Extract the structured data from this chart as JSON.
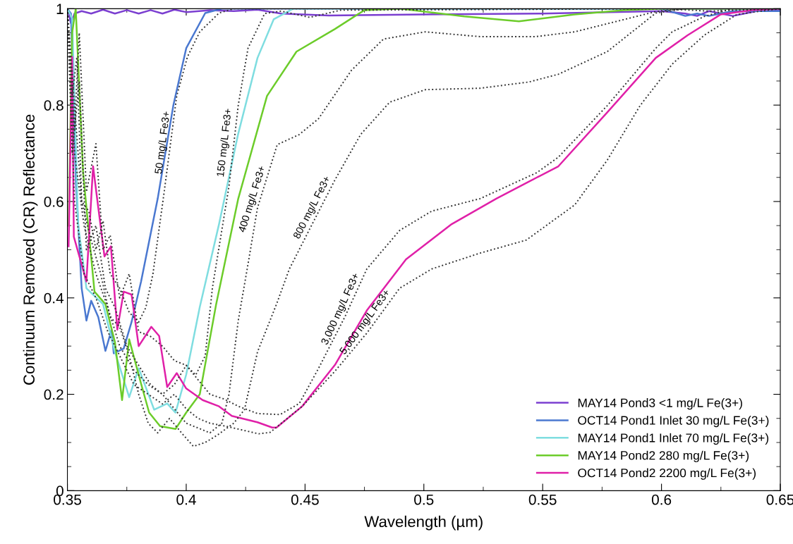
{
  "chart_data": {
    "type": "line",
    "xlabel": "Wavelength (µm)",
    "ylabel": "Continuum Removed (CR) Reflectance",
    "xlim": [
      0.35,
      0.65
    ],
    "ylim": [
      0,
      1
    ],
    "xticks": [
      0.35,
      0.4,
      0.45,
      0.5,
      0.55,
      0.6,
      0.65
    ],
    "yticks": [
      0,
      0.2,
      0.4,
      0.6,
      0.8,
      1
    ],
    "grid": false,
    "legend": "bottom right",
    "marker": "none",
    "series": [
      {
        "name": "MAY14 Pond3 <1 mg/L Fe(3+)",
        "color": "#7b3fd0",
        "line_style": "solid",
        "x": [
          0.35,
          0.3515,
          0.353,
          0.356,
          0.36,
          0.365,
          0.37,
          0.375,
          0.38,
          0.385,
          0.39,
          0.395,
          0.4,
          0.41,
          0.42,
          0.43,
          0.44,
          0.46,
          0.5,
          0.55,
          0.6,
          0.61,
          0.615,
          0.62,
          0.625,
          0.63,
          0.64,
          0.65
        ],
        "values": [
          1.0,
          0.97,
          0.99,
          0.995,
          0.99,
          0.998,
          0.99,
          0.997,
          0.99,
          0.997,
          0.99,
          0.998,
          0.993,
          0.997,
          0.995,
          0.998,
          0.99,
          0.986,
          0.988,
          0.99,
          0.995,
          0.99,
          0.985,
          0.995,
          0.99,
          0.985,
          0.995,
          0.996
        ]
      },
      {
        "name": "OCT14 Pond1 Inlet 30 mg/L Fe(3+)",
        "color": "#4a78d0",
        "line_style": "solid",
        "x": [
          0.35,
          0.3515,
          0.3536,
          0.356,
          0.358,
          0.36,
          0.363,
          0.366,
          0.3686,
          0.3695,
          0.3737,
          0.377,
          0.381,
          0.388,
          0.3946,
          0.4,
          0.408,
          0.415,
          0.6,
          0.61,
          0.615,
          0.62,
          0.63,
          0.65
        ],
        "values": [
          1.0,
          0.99,
          0.64,
          0.42,
          0.353,
          0.394,
          0.36,
          0.29,
          0.334,
          0.285,
          0.295,
          0.35,
          0.434,
          0.606,
          0.8,
          0.918,
          0.991,
          1.0,
          1.0,
          0.985,
          0.99,
          0.985,
          0.995,
          0.995
        ]
      },
      {
        "name": "MAY14 Pond1 Inlet 70 mg/L Fe(3+)",
        "color": "#7fdde0",
        "line_style": "solid",
        "x": [
          0.35,
          0.352,
          0.3545,
          0.358,
          0.365,
          0.37,
          0.376,
          0.38,
          0.3865,
          0.392,
          0.3955,
          0.4,
          0.4057,
          0.4138,
          0.4218,
          0.43,
          0.4368,
          0.445,
          0.65
        ],
        "values": [
          1.0,
          0.98,
          0.553,
          0.42,
          0.387,
          0.288,
          0.194,
          0.254,
          0.168,
          0.181,
          0.162,
          0.241,
          0.381,
          0.553,
          0.739,
          0.898,
          0.978,
          1.0,
          1.0
        ]
      },
      {
        "name": "MAY14 Pond2 280 mg/L Fe(3+)",
        "color": "#6ccc2a",
        "line_style": "solid",
        "x": [
          0.3505,
          0.352,
          0.3535,
          0.3566,
          0.3614,
          0.366,
          0.37,
          0.373,
          0.376,
          0.381,
          0.3844,
          0.389,
          0.3955,
          0.4,
          0.4057,
          0.4126,
          0.4219,
          0.434,
          0.4464,
          0.4626,
          0.475,
          0.49,
          0.517,
          0.54,
          0.5635,
          0.584,
          0.6,
          0.65
        ],
        "values": [
          0.55,
          0.95,
          1.0,
          0.66,
          0.413,
          0.387,
          0.308,
          0.188,
          0.314,
          0.222,
          0.162,
          0.134,
          0.128,
          0.162,
          0.2,
          0.387,
          0.606,
          0.819,
          0.911,
          0.958,
          0.997,
          1.0,
          0.984,
          0.974,
          0.988,
          0.997,
          1.0,
          1.0
        ]
      },
      {
        "name": "OCT14 Pond2 2200 mg/L Fe(3+)",
        "color": "#e020a8",
        "line_style": "solid",
        "x": [
          0.3505,
          0.352,
          0.3527,
          0.358,
          0.3608,
          0.363,
          0.3656,
          0.3683,
          0.371,
          0.3737,
          0.377,
          0.38,
          0.3853,
          0.3886,
          0.392,
          0.396,
          0.4,
          0.4069,
          0.4138,
          0.4192,
          0.43,
          0.4362,
          0.438,
          0.4488,
          0.4626,
          0.476,
          0.4925,
          0.5117,
          0.5305,
          0.5476,
          0.5566,
          0.5772,
          0.5976,
          0.611,
          0.6249,
          0.638,
          0.65
        ],
        "values": [
          0.507,
          0.9,
          0.527,
          0.434,
          0.673,
          0.587,
          0.486,
          0.507,
          0.334,
          0.413,
          0.407,
          0.3,
          0.34,
          0.321,
          0.215,
          0.244,
          0.212,
          0.188,
          0.175,
          0.155,
          0.142,
          0.131,
          0.131,
          0.175,
          0.261,
          0.374,
          0.48,
          0.553,
          0.606,
          0.65,
          0.673,
          0.785,
          0.898,
          0.945,
          0.988,
          0.997,
          1.0
        ]
      },
      {
        "color": "#333333",
        "line_style": "dotted",
        "x": [
          0.35,
          0.352,
          0.354,
          0.356,
          0.359,
          0.362,
          0.365,
          0.368,
          0.372,
          0.376,
          0.38,
          0.383,
          0.386,
          0.3907,
          0.396,
          0.4005,
          0.4057,
          0.4138,
          0.42,
          0.6,
          0.62,
          0.65
        ],
        "values": [
          1.0,
          0.82,
          0.9,
          0.6,
          0.58,
          0.5,
          0.56,
          0.45,
          0.42,
          0.37,
          0.35,
          0.38,
          0.45,
          0.619,
          0.819,
          0.9,
          0.952,
          0.991,
          1.0,
          1.0,
          0.995,
          1.0
        ]
      },
      {
        "color": "#333333",
        "line_style": "dotted",
        "x": [
          0.35,
          0.353,
          0.355,
          0.358,
          0.362,
          0.365,
          0.368,
          0.372,
          0.376,
          0.38,
          0.385,
          0.39,
          0.395,
          0.4,
          0.404,
          0.408,
          0.411,
          0.418,
          0.4219,
          0.426,
          0.433,
          0.44,
          0.452,
          0.465,
          0.6,
          0.65
        ],
        "values": [
          1.0,
          0.75,
          0.95,
          0.62,
          0.72,
          0.5,
          0.53,
          0.4,
          0.45,
          0.33,
          0.32,
          0.3,
          0.27,
          0.26,
          0.24,
          0.28,
          0.42,
          0.632,
          0.8,
          0.918,
          0.99,
          0.995,
          0.982,
          0.997,
          1.0,
          1.0
        ]
      },
      {
        "color": "#333333",
        "line_style": "dotted",
        "x": [
          0.35,
          0.352,
          0.355,
          0.358,
          0.362,
          0.366,
          0.37,
          0.375,
          0.38,
          0.385,
          0.39,
          0.395,
          0.4,
          0.405,
          0.41,
          0.415,
          0.418,
          0.4219,
          0.426,
          0.43,
          0.4383,
          0.4476,
          0.4557,
          0.4695,
          0.483,
          0.5006,
          0.5237,
          0.547,
          0.5635,
          0.5976,
          0.61,
          0.65
        ],
        "values": [
          1.0,
          0.7,
          0.85,
          0.5,
          0.55,
          0.42,
          0.38,
          0.3,
          0.26,
          0.22,
          0.2,
          0.17,
          0.14,
          0.13,
          0.12,
          0.14,
          0.2,
          0.353,
          0.47,
          0.587,
          0.718,
          0.739,
          0.772,
          0.872,
          0.937,
          0.952,
          0.942,
          0.942,
          0.952,
          0.994,
          1.0,
          1.0
        ]
      },
      {
        "color": "#333333",
        "line_style": "dotted",
        "x": [
          0.35,
          0.353,
          0.356,
          0.36,
          0.364,
          0.368,
          0.372,
          0.376,
          0.38,
          0.384,
          0.388,
          0.393,
          0.398,
          0.403,
          0.408,
          0.413,
          0.42,
          0.4245,
          0.43,
          0.438,
          0.4434,
          0.453,
          0.4626,
          0.4734,
          0.4856,
          0.5006,
          0.5237,
          0.5443,
          0.5566,
          0.5772,
          0.5976,
          0.61,
          0.65
        ],
        "values": [
          1.0,
          0.8,
          0.6,
          0.52,
          0.45,
          0.36,
          0.34,
          0.28,
          0.2,
          0.14,
          0.12,
          0.15,
          0.12,
          0.092,
          0.1,
          0.115,
          0.14,
          0.168,
          0.288,
          0.387,
          0.46,
          0.553,
          0.645,
          0.739,
          0.806,
          0.832,
          0.835,
          0.848,
          0.864,
          0.911,
          0.991,
          1.0,
          1.0
        ]
      },
      {
        "color": "#333333",
        "line_style": "dotted",
        "x": [
          0.35,
          0.353,
          0.357,
          0.362,
          0.367,
          0.372,
          0.378,
          0.384,
          0.39,
          0.395,
          0.4,
          0.405,
          0.41,
          0.416,
          0.422,
          0.43,
          0.4395,
          0.4476,
          0.4557,
          0.4668,
          0.476,
          0.4898,
          0.5033,
          0.5237,
          0.5476,
          0.5566,
          0.5772,
          0.5976,
          0.6045,
          0.618,
          0.63,
          0.65
        ],
        "values": [
          1.0,
          0.7,
          0.55,
          0.45,
          0.38,
          0.3,
          0.25,
          0.22,
          0.2,
          0.22,
          0.26,
          0.23,
          0.2,
          0.19,
          0.175,
          0.16,
          0.158,
          0.181,
          0.254,
          0.361,
          0.46,
          0.54,
          0.58,
          0.606,
          0.66,
          0.692,
          0.799,
          0.918,
          0.952,
          0.984,
          1.0,
          1.0
        ]
      },
      {
        "color": "#333333",
        "line_style": "dotted",
        "x": [
          0.35,
          0.353,
          0.357,
          0.362,
          0.367,
          0.372,
          0.378,
          0.384,
          0.39,
          0.395,
          0.4,
          0.405,
          0.41,
          0.4165,
          0.4305,
          0.4353,
          0.4488,
          0.4626,
          0.476,
          0.4898,
          0.5033,
          0.5237,
          0.5431,
          0.5635,
          0.5772,
          0.591,
          0.6045,
          0.618,
          0.6317,
          0.645,
          0.65
        ],
        "values": [
          1.0,
          0.6,
          0.45,
          0.4,
          0.33,
          0.28,
          0.22,
          0.2,
          0.18,
          0.2,
          0.17,
          0.15,
          0.14,
          0.134,
          0.118,
          0.121,
          0.175,
          0.248,
          0.327,
          0.42,
          0.46,
          0.493,
          0.52,
          0.593,
          0.686,
          0.799,
          0.885,
          0.945,
          0.988,
          0.997,
          1.0
        ]
      }
    ],
    "annotations": [
      {
        "text": "50 mg/L Fe3+",
        "x": 0.3935,
        "y": 0.72
      },
      {
        "text": "150 mg/L Fe3+",
        "x": 0.4195,
        "y": 0.72
      },
      {
        "text": "400 mg/L Fe3+",
        "x": 0.431,
        "y": 0.6
      },
      {
        "text": "800 mg/L Fe3+",
        "x": 0.456,
        "y": 0.58
      },
      {
        "text": "3,000 mg/L Fe3+",
        "x": 0.468,
        "y": 0.37
      },
      {
        "text": "5,000 mg/L Fe3+",
        "x": 0.478,
        "y": 0.34
      }
    ]
  }
}
